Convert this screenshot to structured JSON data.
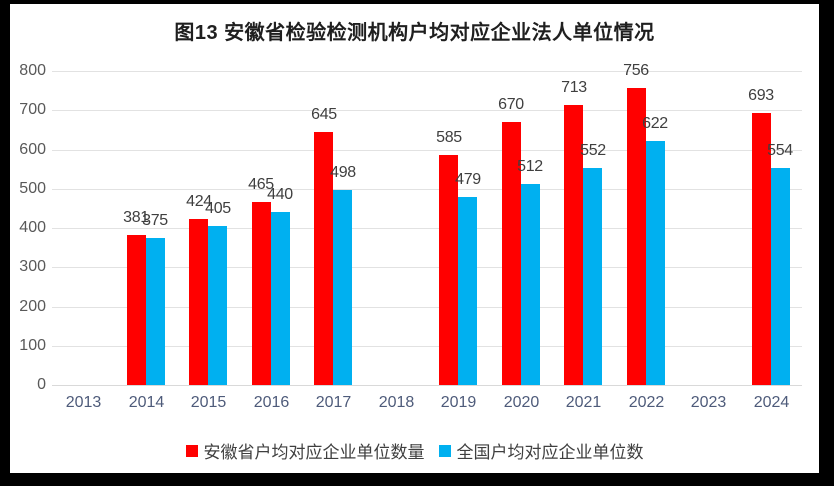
{
  "title": "图13 安徽省检验检测机构户均对应企业法人单位情况",
  "chart_data": {
    "type": "bar",
    "title": "图13 安徽省检验检测机构户均对应企业法人单位情况",
    "categories": [
      "2013",
      "2014",
      "2015",
      "2016",
      "2017",
      "2018",
      "2019",
      "2020",
      "2021",
      "2022",
      "2023",
      "2024"
    ],
    "series": [
      {
        "name": "安徽省户均对应企业单位数量",
        "color": "#FF0000",
        "values": [
          null,
          381,
          424,
          465,
          645,
          null,
          585,
          670,
          713,
          756,
          null,
          693
        ]
      },
      {
        "name": "全国户均对应企业单位数",
        "color": "#00B0F0",
        "values": [
          null,
          375,
          405,
          440,
          498,
          null,
          479,
          512,
          552,
          622,
          null,
          554
        ]
      }
    ],
    "ylim": [
      0,
      800
    ],
    "ytick_step": 100,
    "yticks": [
      "0",
      "100",
      "200",
      "300",
      "400",
      "500",
      "600",
      "700",
      "800"
    ],
    "grid": true,
    "data_labels": true,
    "legend_position": "bottom"
  },
  "colors": {
    "frame_bg": "#000000",
    "chart_bg": "#FFFFFF",
    "gridline": "#E2E2E2",
    "axis_line": "#D9D9D9",
    "y_tick_label": "#595959",
    "x_tick_label": "#4E5B7A",
    "data_label": "#3F3F3F",
    "legend_text": "#3F3F3F",
    "title_text": "#1F1F1F"
  }
}
